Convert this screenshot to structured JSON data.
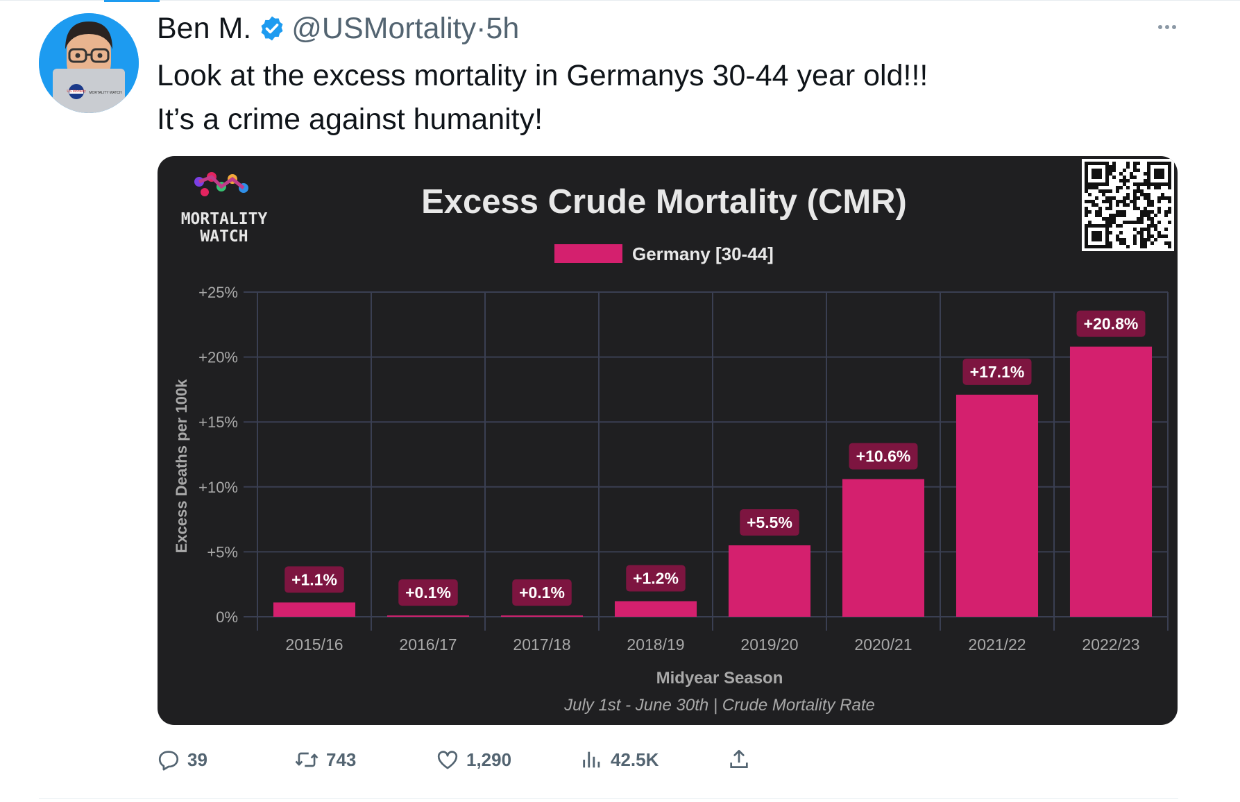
{
  "tweet": {
    "display_name": "Ben M.",
    "handle": "@USMortality",
    "separator": "·",
    "time": "5h",
    "text_line1": "Look at the excess mortality in Germanys 30-44 year old!!!",
    "text_line2": "It’s a crime against humanity!",
    "avatar_laptop_sticker1": "US Mortality",
    "avatar_laptop_sticker2": "MORTALITY WATCH"
  },
  "icons": {
    "verified": "verified-badge-icon",
    "more": "more-dots-icon",
    "reply": "reply-icon",
    "retweet": "retweet-icon",
    "like": "heart-icon",
    "views": "views-icon",
    "share": "share-icon"
  },
  "actions": {
    "replies": "39",
    "retweets": "743",
    "likes": "1,290",
    "views": "42.5K"
  },
  "card": {
    "logo_line1": "MORTALITY",
    "logo_line2": "WATCH"
  },
  "colors": {
    "accent": "#1d9bf0",
    "bar": "#d4206e",
    "label_bg": "#7d1540",
    "chart_bg": "#1f1f21"
  },
  "chart_data": {
    "type": "bar",
    "title": "Excess Crude Mortality (CMR)",
    "legend": "Germany [30-44]",
    "legend_position": "top-center",
    "xlabel": "Midyear Season",
    "subtitle": "July 1st - June 30th | Crude Mortality Rate",
    "ylabel": "Excess Deaths per 100k",
    "categories": [
      "2015/16",
      "2016/17",
      "2017/18",
      "2018/19",
      "2019/20",
      "2020/21",
      "2021/22",
      "2022/23"
    ],
    "values": [
      1.1,
      0.1,
      0.1,
      1.2,
      5.5,
      10.6,
      17.1,
      20.8
    ],
    "value_labels": [
      "+1.1%",
      "+0.1%",
      "+0.1%",
      "+1.2%",
      "+5.5%",
      "+10.6%",
      "+17.1%",
      "+20.8%"
    ],
    "yticks": [
      0,
      5,
      10,
      15,
      20,
      25
    ],
    "ytick_labels": [
      "0%",
      "+5%",
      "+10%",
      "+15%",
      "+20%",
      "+25%"
    ],
    "ylim": [
      0,
      25
    ],
    "grid": true
  }
}
